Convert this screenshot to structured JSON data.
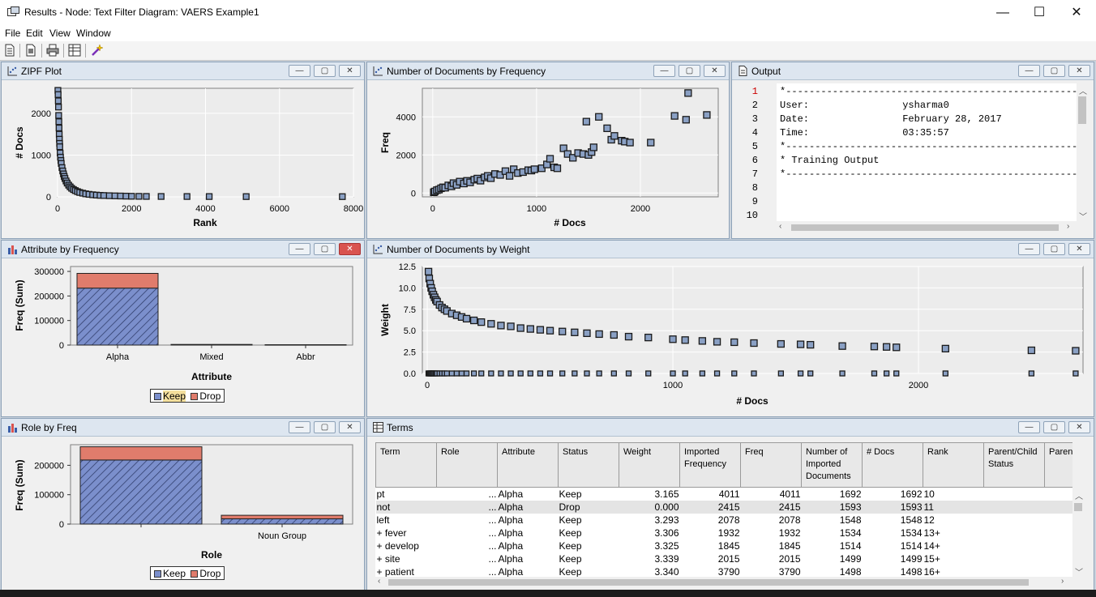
{
  "window": {
    "title": "Results - Node: Text Filter  Diagram: VAERS Example1",
    "minimize_glyph": "—",
    "maximize_glyph": "☐",
    "close_glyph": "✕"
  },
  "menu": [
    "File",
    "Edit",
    "View",
    "Window"
  ],
  "toolbar_icons": [
    "new-document-icon",
    "properties-icon",
    "print-icon",
    "table-view-icon",
    "magic-wand-icon"
  ],
  "panel_buttons": {
    "minimize": "—",
    "restore": "▢",
    "close": "✕"
  },
  "zipf": {
    "title": "ZIPF Plot",
    "xlabel": "Rank",
    "ylabel": "# Docs",
    "xticks": [
      "0",
      "2000",
      "4000",
      "6000",
      "8000"
    ],
    "yticks": [
      "0",
      "1000",
      "2000"
    ]
  },
  "docs_freq": {
    "title": "Number of Documents by Frequency",
    "xlabel": "# Docs",
    "ylabel": "Freq",
    "xticks": [
      "0",
      "1000",
      "2000"
    ],
    "yticks": [
      "0",
      "2000",
      "4000"
    ]
  },
  "output": {
    "title": "Output",
    "lines": [
      {
        "n": "1",
        "text": "*------------------------------------------------------------*"
      },
      {
        "n": "2",
        "text": "User:                ysharma0"
      },
      {
        "n": "3",
        "text": "Date:                February 28, 2017"
      },
      {
        "n": "4",
        "text": "Time:                03:35:57"
      },
      {
        "n": "5",
        "text": "*------------------------------------------------------------*"
      },
      {
        "n": "6",
        "text": "* Training Output"
      },
      {
        "n": "7",
        "text": "*------------------------------------------------------------*"
      },
      {
        "n": "8",
        "text": ""
      },
      {
        "n": "9",
        "text": ""
      },
      {
        "n": "10",
        "text": ""
      }
    ]
  },
  "attr_freq": {
    "title": "Attribute by Frequency",
    "xlabel": "Attribute",
    "ylabel": "Freq (Sum)",
    "yticks": [
      "0",
      "100000",
      "200000",
      "300000"
    ],
    "categories": [
      "Alpha",
      "Mixed",
      "Abbr"
    ],
    "legend": [
      "Keep",
      "Drop"
    ]
  },
  "docs_weight": {
    "title": "Number of Documents by Weight",
    "xlabel": "# Docs",
    "ylabel": "Weight",
    "xticks": [
      "0",
      "1000",
      "2000"
    ],
    "yticks": [
      "0.0",
      "2.5",
      "5.0",
      "7.5",
      "10.0",
      "12.5"
    ]
  },
  "role_freq": {
    "title": "Role by Freq",
    "xlabel": "Role",
    "ylabel": "Freq (Sum)",
    "yticks": [
      "0",
      "100000",
      "200000"
    ],
    "categories": [
      "",
      "Noun Group"
    ],
    "legend": [
      "Keep",
      "Drop"
    ]
  },
  "terms": {
    "title": "Terms",
    "columns": [
      "Term",
      "Role",
      "Attribute",
      "Status",
      "Weight",
      "Imported Frequency",
      "Freq",
      "Number of Imported Documents",
      "# Docs",
      "Rank",
      "Parent/Child Status",
      "Paren"
    ],
    "rows": [
      [
        "pt",
        "...",
        "Alpha",
        "Keep",
        "3.165",
        "4011",
        "4011",
        "1692",
        "1692",
        "10"
      ],
      [
        "not",
        "...",
        "Alpha",
        "Drop",
        "0.000",
        "2415",
        "2415",
        "1593",
        "1593",
        "11"
      ],
      [
        "left",
        "...",
        "Alpha",
        "Keep",
        "3.293",
        "2078",
        "2078",
        "1548",
        "1548",
        "12"
      ],
      [
        "+ fever",
        "...",
        "Alpha",
        "Keep",
        "3.306",
        "1932",
        "1932",
        "1534",
        "1534",
        "13+"
      ],
      [
        "+ develop",
        "...",
        "Alpha",
        "Keep",
        "3.325",
        "1845",
        "1845",
        "1514",
        "1514",
        "14+"
      ],
      [
        "+ site",
        "...",
        "Alpha",
        "Keep",
        "3.339",
        "2015",
        "2015",
        "1499",
        "1499",
        "15+"
      ],
      [
        "+ patient",
        "...",
        "Alpha",
        "Keep",
        "3.340",
        "3790",
        "3790",
        "1498",
        "1498",
        "16+"
      ]
    ]
  },
  "colors": {
    "keep": "#7b8fcc",
    "drop": "#e07c6c",
    "marker": "#8aa0c4"
  },
  "chart_data": [
    {
      "type": "scatter",
      "title": "ZIPF Plot",
      "xlabel": "Rank",
      "ylabel": "# Docs",
      "xlim": [
        0,
        8000
      ],
      "ylim": [
        0,
        2600
      ],
      "x": [
        10,
        15,
        20,
        25,
        30,
        35,
        40,
        45,
        50,
        55,
        60,
        70,
        80,
        90,
        100,
        120,
        140,
        160,
        180,
        200,
        230,
        260,
        300,
        340,
        380,
        430,
        480,
        540,
        600,
        680,
        760,
        850,
        950,
        1050,
        1150,
        1250,
        1400,
        1550,
        1700,
        1850,
        2000,
        2200,
        2400,
        2800,
        3500,
        4100,
        5100,
        7700
      ],
      "y": [
        2550,
        2450,
        2300,
        2150,
        1950,
        1800,
        1650,
        1500,
        1380,
        1280,
        1200,
        1050,
        950,
        870,
        800,
        700,
        620,
        550,
        490,
        440,
        380,
        330,
        280,
        240,
        205,
        175,
        150,
        125,
        105,
        88,
        72,
        60,
        50,
        42,
        36,
        32,
        27,
        23,
        20,
        17,
        14,
        12,
        10,
        9,
        8,
        7,
        6,
        5
      ]
    },
    {
      "type": "scatter",
      "title": "Number of Documents by Frequency",
      "xlabel": "# Docs",
      "ylabel": "Freq",
      "xlim": [
        -100,
        2750
      ],
      "ylim": [
        -200,
        5500
      ],
      "x": [
        10,
        20,
        40,
        60,
        80,
        100,
        120,
        150,
        180,
        200,
        230,
        260,
        300,
        330,
        360,
        400,
        430,
        460,
        500,
        530,
        560,
        600,
        650,
        700,
        740,
        780,
        820,
        870,
        920,
        950,
        980,
        1050,
        1100,
        1130,
        1170,
        1200,
        1260,
        1300,
        1350,
        1400,
        1450,
        1480,
        1500,
        1530,
        1550,
        1600,
        1680,
        1720,
        1750,
        1820,
        1850,
        1900,
        2100,
        2330,
        2440,
        2460,
        2640
      ],
      "y": [
        40,
        80,
        150,
        180,
        250,
        300,
        280,
        400,
        350,
        520,
        430,
        600,
        500,
        640,
        560,
        700,
        760,
        650,
        820,
        900,
        780,
        1000,
        950,
        1150,
        900,
        1250,
        1050,
        1100,
        1200,
        1180,
        1250,
        1300,
        1500,
        1800,
        1350,
        1300,
        2350,
        2050,
        1850,
        2100,
        2050,
        3750,
        2000,
        2150,
        2400,
        4000,
        3400,
        2800,
        3000,
        2750,
        2700,
        2650,
        2650,
        4050,
        3850,
        5250,
        4100
      ]
    },
    {
      "type": "bar",
      "title": "Attribute by Frequency",
      "xlabel": "Attribute",
      "ylabel": "Freq (Sum)",
      "categories": [
        "Alpha",
        "Mixed",
        "Abbr"
      ],
      "ylim": [
        0,
        320000
      ],
      "series": [
        {
          "name": "Keep",
          "values": [
            232000,
            2000,
            1000
          ]
        },
        {
          "name": "Drop",
          "values": [
            60000,
            500,
            300
          ]
        }
      ]
    },
    {
      "type": "scatter",
      "title": "Number of Documents by Weight",
      "xlabel": "# Docs",
      "ylabel": "Weight",
      "xlim": [
        -20,
        2670
      ],
      "ylim": [
        0,
        12.5
      ],
      "x": [
        5,
        8,
        12,
        16,
        20,
        25,
        30,
        35,
        40,
        50,
        60,
        70,
        80,
        100,
        120,
        140,
        160,
        190,
        220,
        260,
        300,
        340,
        380,
        420,
        460,
        500,
        550,
        600,
        650,
        700,
        760,
        820,
        900,
        1000,
        1050,
        1120,
        1180,
        1250,
        1330,
        1440,
        1520,
        1560,
        1690,
        1820,
        1870,
        1910,
        2110,
        2460,
        2640
      ],
      "y": [
        11.9,
        11.1,
        10.5,
        10.0,
        9.6,
        9.2,
        8.9,
        8.6,
        8.4,
        8.0,
        7.7,
        7.5,
        7.3,
        7.0,
        6.8,
        6.6,
        6.4,
        6.2,
        6.0,
        5.8,
        5.6,
        5.5,
        5.3,
        5.2,
        5.1,
        5.0,
        4.9,
        4.8,
        4.7,
        4.6,
        4.5,
        4.3,
        4.2,
        4.0,
        3.9,
        3.8,
        3.7,
        3.65,
        3.55,
        3.45,
        3.4,
        3.35,
        3.2,
        3.15,
        3.1,
        3.05,
        2.9,
        2.7,
        2.65
      ]
    },
    {
      "type": "bar",
      "title": "Role by Freq",
      "xlabel": "Role",
      "ylabel": "Freq (Sum)",
      "categories": [
        "",
        "Noun Group"
      ],
      "ylim": [
        0,
        270000
      ],
      "series": [
        {
          "name": "Keep",
          "values": [
            218000,
            18000
          ]
        },
        {
          "name": "Drop",
          "values": [
            45000,
            12000
          ]
        }
      ]
    }
  ]
}
